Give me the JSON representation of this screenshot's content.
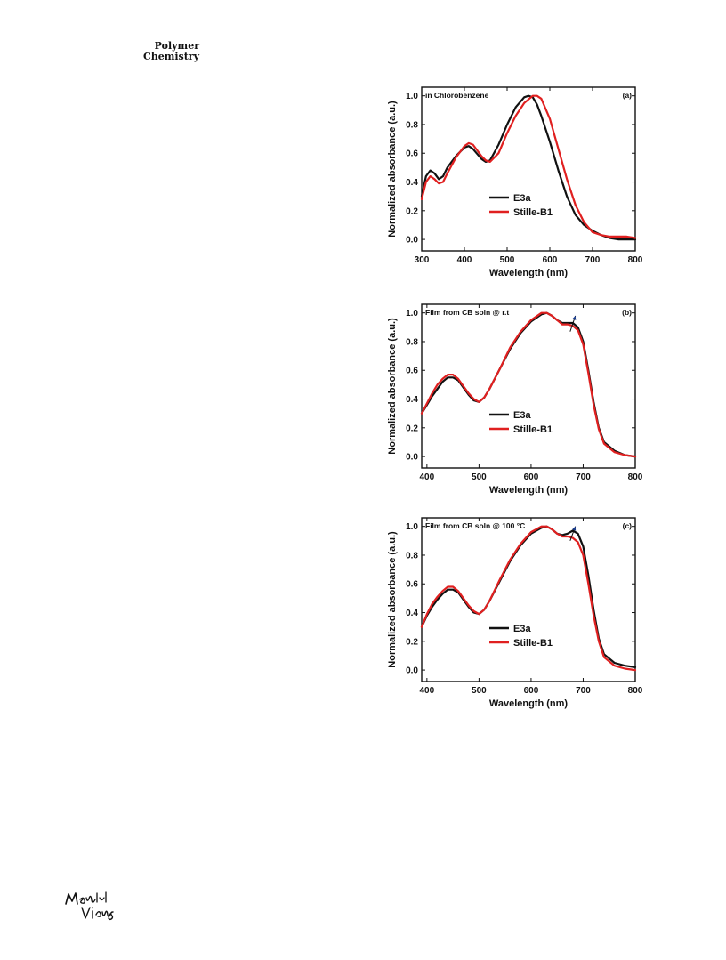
{
  "header": {
    "journal_line1": "Polymer",
    "journal_line2": "Chemistry"
  },
  "footer": {
    "logo_text": "Materials Views"
  },
  "chart_data": [
    {
      "type": "line",
      "panel": "(a)",
      "annotation": "in Chlorobenzene",
      "xlabel": "Wavelength (nm)",
      "ylabel": "Normalized absorbance (a.u.)",
      "xlim": [
        300,
        800
      ],
      "ylim": [
        -0.08,
        1.06
      ],
      "xticks": [
        300,
        400,
        500,
        600,
        700,
        800
      ],
      "yticks": [
        0.0,
        0.2,
        0.4,
        0.6,
        0.8,
        1.0
      ],
      "legend_position": "center-right",
      "arrow": null,
      "series": [
        {
          "name": "E3a",
          "color": "#111111",
          "x": [
            300,
            310,
            320,
            330,
            340,
            350,
            360,
            380,
            400,
            410,
            420,
            440,
            450,
            460,
            480,
            500,
            520,
            540,
            550,
            560,
            570,
            580,
            600,
            620,
            640,
            660,
            680,
            700,
            720,
            740,
            760,
            780,
            800
          ],
          "y": [
            0.3,
            0.44,
            0.48,
            0.46,
            0.42,
            0.44,
            0.5,
            0.58,
            0.64,
            0.65,
            0.63,
            0.56,
            0.54,
            0.55,
            0.66,
            0.8,
            0.92,
            0.99,
            1.0,
            0.99,
            0.94,
            0.86,
            0.68,
            0.48,
            0.3,
            0.17,
            0.1,
            0.06,
            0.03,
            0.01,
            0.0,
            0.0,
            0.0
          ]
        },
        {
          "name": "Stille-B1",
          "color": "#e02020",
          "x": [
            300,
            310,
            320,
            330,
            340,
            350,
            360,
            380,
            400,
            410,
            420,
            440,
            450,
            460,
            480,
            500,
            520,
            540,
            560,
            570,
            580,
            600,
            620,
            640,
            660,
            680,
            700,
            720,
            740,
            760,
            780,
            800
          ],
          "y": [
            0.28,
            0.4,
            0.44,
            0.42,
            0.39,
            0.4,
            0.46,
            0.57,
            0.65,
            0.67,
            0.66,
            0.58,
            0.55,
            0.54,
            0.6,
            0.74,
            0.86,
            0.95,
            1.0,
            1.0,
            0.98,
            0.84,
            0.63,
            0.42,
            0.24,
            0.12,
            0.05,
            0.03,
            0.02,
            0.02,
            0.02,
            0.01
          ]
        }
      ]
    },
    {
      "type": "line",
      "panel": "(b)",
      "annotation": "Film from CB soln @ r.t",
      "xlabel": "Wavelength (nm)",
      "ylabel": "Normalized absorbance (a.u.)",
      "xlim": [
        390,
        800
      ],
      "ylim": [
        -0.08,
        1.06
      ],
      "xticks": [
        400,
        500,
        600,
        700,
        800
      ],
      "yticks": [
        0.0,
        0.2,
        0.4,
        0.6,
        0.8,
        1.0
      ],
      "legend_position": "center-right",
      "arrow": {
        "x1": 675,
        "y1": 0.87,
        "x2": 685,
        "y2": 0.98
      },
      "series": [
        {
          "name": "E3a",
          "color": "#111111",
          "x": [
            390,
            400,
            410,
            420,
            430,
            440,
            450,
            460,
            470,
            480,
            490,
            500,
            510,
            520,
            540,
            560,
            580,
            600,
            620,
            630,
            640,
            650,
            660,
            670,
            680,
            690,
            700,
            710,
            720,
            730,
            740,
            760,
            780,
            800
          ],
          "y": [
            0.3,
            0.36,
            0.42,
            0.47,
            0.52,
            0.55,
            0.55,
            0.53,
            0.48,
            0.43,
            0.39,
            0.38,
            0.41,
            0.47,
            0.61,
            0.75,
            0.86,
            0.94,
            0.99,
            1.0,
            0.98,
            0.95,
            0.93,
            0.93,
            0.93,
            0.9,
            0.8,
            0.6,
            0.38,
            0.2,
            0.1,
            0.04,
            0.01,
            0.0
          ]
        },
        {
          "name": "Stille-B1",
          "color": "#e02020",
          "x": [
            390,
            400,
            410,
            420,
            430,
            440,
            450,
            460,
            470,
            480,
            490,
            500,
            510,
            520,
            540,
            560,
            580,
            600,
            620,
            630,
            640,
            650,
            660,
            670,
            680,
            690,
            700,
            710,
            720,
            730,
            740,
            760,
            780,
            800
          ],
          "y": [
            0.3,
            0.37,
            0.44,
            0.5,
            0.54,
            0.57,
            0.57,
            0.54,
            0.49,
            0.44,
            0.4,
            0.38,
            0.41,
            0.47,
            0.61,
            0.76,
            0.87,
            0.95,
            1.0,
            1.0,
            0.98,
            0.95,
            0.92,
            0.92,
            0.91,
            0.88,
            0.78,
            0.58,
            0.36,
            0.19,
            0.09,
            0.03,
            0.01,
            0.0
          ]
        }
      ]
    },
    {
      "type": "line",
      "panel": "(c)",
      "annotation": "Film from CB soln @ 100 °C",
      "xlabel": "Wavelength (nm)",
      "ylabel": "Normalized absorbance (a.u.)",
      "xlim": [
        390,
        800
      ],
      "ylim": [
        -0.08,
        1.06
      ],
      "xticks": [
        400,
        500,
        600,
        700,
        800
      ],
      "yticks": [
        0.0,
        0.2,
        0.4,
        0.6,
        0.8,
        1.0
      ],
      "legend_position": "center-right",
      "arrow": {
        "x1": 675,
        "y1": 0.9,
        "x2": 685,
        "y2": 1.0
      },
      "series": [
        {
          "name": "E3a",
          "color": "#111111",
          "x": [
            390,
            400,
            410,
            420,
            430,
            440,
            450,
            460,
            470,
            480,
            490,
            500,
            510,
            520,
            540,
            560,
            580,
            600,
            620,
            630,
            640,
            650,
            660,
            670,
            680,
            690,
            700,
            710,
            720,
            730,
            740,
            760,
            780,
            800
          ],
          "y": [
            0.3,
            0.38,
            0.44,
            0.49,
            0.53,
            0.56,
            0.56,
            0.54,
            0.49,
            0.44,
            0.4,
            0.39,
            0.42,
            0.48,
            0.62,
            0.76,
            0.87,
            0.95,
            0.99,
            1.0,
            0.98,
            0.95,
            0.94,
            0.95,
            0.97,
            0.95,
            0.86,
            0.66,
            0.42,
            0.22,
            0.11,
            0.05,
            0.03,
            0.02
          ]
        },
        {
          "name": "Stille-B1",
          "color": "#e02020",
          "x": [
            390,
            400,
            410,
            420,
            430,
            440,
            450,
            460,
            470,
            480,
            490,
            500,
            510,
            520,
            540,
            560,
            580,
            600,
            620,
            630,
            640,
            650,
            660,
            670,
            680,
            690,
            700,
            710,
            720,
            730,
            740,
            760,
            780,
            800
          ],
          "y": [
            0.3,
            0.39,
            0.46,
            0.51,
            0.55,
            0.58,
            0.58,
            0.55,
            0.5,
            0.45,
            0.41,
            0.39,
            0.42,
            0.48,
            0.63,
            0.77,
            0.88,
            0.96,
            1.0,
            1.0,
            0.98,
            0.95,
            0.93,
            0.93,
            0.92,
            0.89,
            0.8,
            0.6,
            0.38,
            0.2,
            0.09,
            0.03,
            0.01,
            0.0
          ]
        }
      ]
    }
  ]
}
